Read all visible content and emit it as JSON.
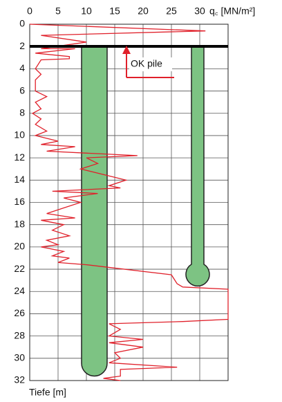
{
  "chart_data": {
    "type": "line",
    "x_label": "q꜀ [MN/m²]",
    "y_label": "Tiefe [m]",
    "annotation": "OK pile",
    "xlim": [
      0,
      35
    ],
    "ylim": [
      0,
      32
    ],
    "y_inverted": true,
    "grid": true,
    "color": "#e0202a",
    "xticks": [
      0,
      5,
      10,
      15,
      20,
      25,
      30
    ],
    "yticks": [
      0,
      2,
      4,
      6,
      8,
      10,
      12,
      14,
      16,
      18,
      20,
      22,
      24,
      26,
      28,
      30,
      32
    ],
    "x": [
      0,
      31,
      2,
      10,
      2,
      8,
      1,
      7,
      7,
      2,
      1,
      2,
      1,
      1,
      3,
      1,
      2,
      0.5,
      2,
      1,
      3,
      1,
      5,
      2,
      8,
      3,
      19,
      10,
      12,
      9,
      17,
      14,
      16,
      4,
      12,
      6,
      9,
      6,
      3,
      8,
      2,
      6,
      4,
      7,
      3,
      5,
      2,
      6,
      4,
      7,
      5,
      10,
      25,
      26,
      27,
      35,
      35,
      27,
      14,
      16,
      14,
      20,
      14,
      20,
      15,
      16,
      14,
      26,
      16,
      16,
      13,
      16
    ],
    "y": [
      0,
      0.6,
      1.0,
      1.6,
      2.2,
      2.2,
      2.6,
      2.9,
      3.1,
      3.2,
      4,
      4.5,
      5,
      6,
      6.5,
      7,
      7.6,
      8,
      8.5,
      9,
      9.6,
      10,
      10.5,
      10.8,
      11,
      11.4,
      11.8,
      12,
      12.5,
      13,
      14,
      14.5,
      14.7,
      15,
      15.2,
      15.6,
      16,
      16.5,
      17,
      17.4,
      17.6,
      18,
      18.5,
      19,
      19.4,
      19.8,
      20,
      20.4,
      20.8,
      21,
      21.4,
      21.6,
      22.5,
      23.3,
      23.6,
      23.8,
      26.5,
      26.7,
      26.9,
      27.4,
      28,
      28.3,
      28.6,
      29,
      29.5,
      30,
      30.4,
      30.8,
      31,
      31.6,
      31.8,
      32
    ]
  }
}
